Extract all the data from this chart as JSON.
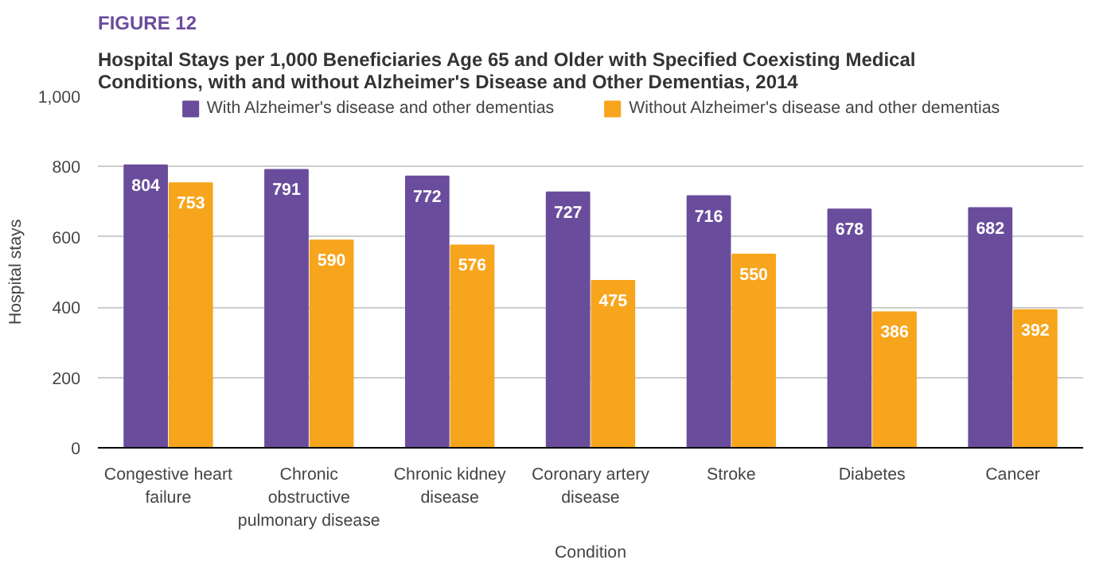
{
  "chart_data": {
    "type": "bar",
    "title": "Hospital Stays per 1,000 Beneficiaries Age 65 and Older with Specified Coexisting Medical Conditions, with and without Alzheimer's Disease and Other Dementias, 2014",
    "annotations": [
      "FIGURE 12"
    ],
    "xlabel": "Condition",
    "ylabel": "Hospital stays",
    "categories": [
      "Congestive heart failure",
      "Chronic obstructive pulmonary disease",
      "Chronic kidney disease",
      "Coronary artery disease",
      "Stroke",
      "Diabetes",
      "Cancer"
    ],
    "series": [
      {
        "name": "With Alzheimer's disease and other dementias",
        "color": "#6a4c9c",
        "values": [
          804,
          791,
          772,
          727,
          716,
          678,
          682
        ]
      },
      {
        "name": "Without Alzheimer's disease and other dementias",
        "color": "#f7a51c",
        "values": [
          753,
          590,
          576,
          475,
          550,
          386,
          392
        ]
      }
    ],
    "ylim": [
      0,
      1000
    ],
    "yticks": [
      0,
      200,
      400,
      600,
      800,
      {
        "value": 1000,
        "label": "1,000"
      }
    ],
    "grid": "y",
    "legend": "top",
    "data_labels": true
  }
}
